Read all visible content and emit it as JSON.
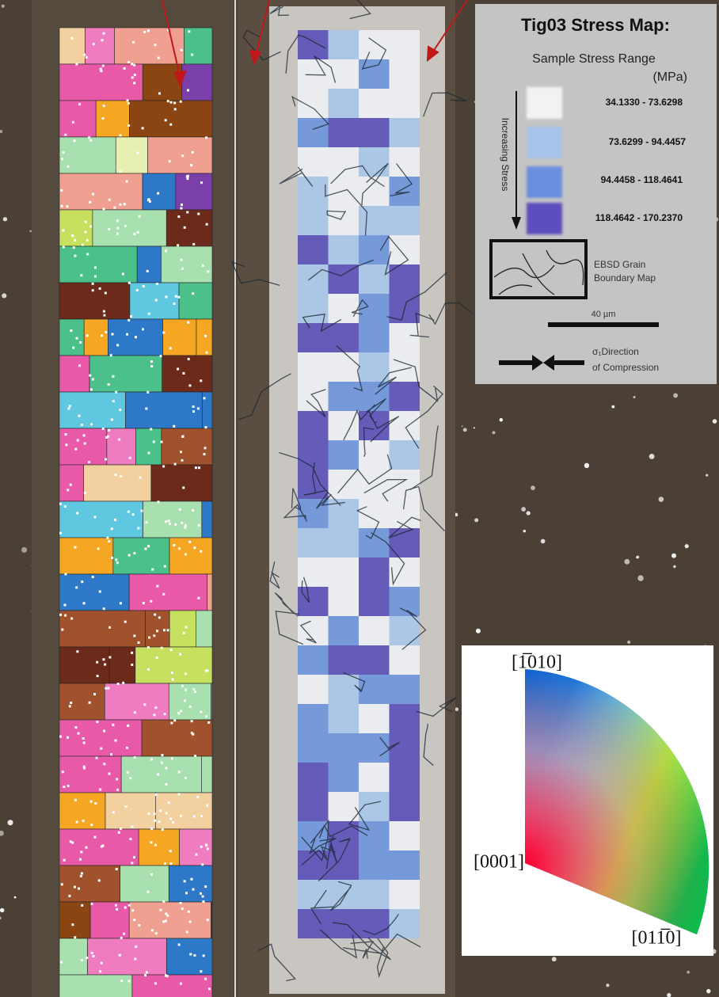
{
  "legend": {
    "title": "Tig03 Stress Map:",
    "range_title": "Sample Stress Range",
    "unit": "(MPa)",
    "axis_label": "Increasing Stress",
    "ranges": [
      "34.1330 - 73.6298",
      "73.6299 - 94.4457",
      "94.4458 - 118.4641",
      "118.4642 - 170.2370"
    ],
    "grain_boundary_label": [
      "EBSD Grain",
      "Boundary Map"
    ],
    "scale_bar": "40 µm",
    "compression_label": [
      "σ₁Direction",
      "of Compression"
    ]
  },
  "ipf": {
    "top": "[1̅010]",
    "left": "[0001]",
    "right": "[011̅0]"
  }
}
